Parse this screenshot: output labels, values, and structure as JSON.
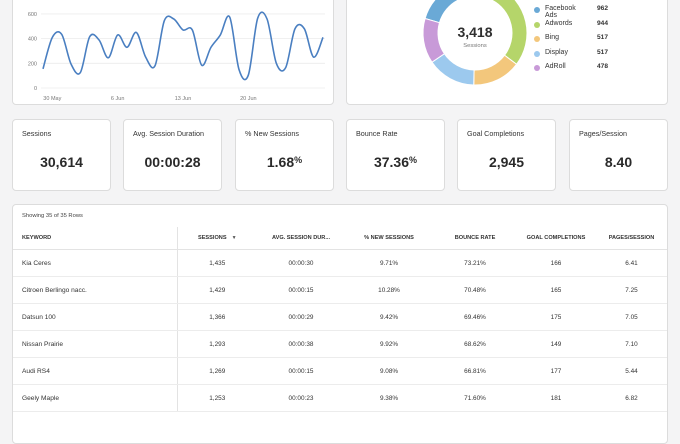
{
  "line_chart": {
    "chart_data": {
      "type": "line",
      "x_labels": [
        "30 May",
        "6 Jun",
        "13 Jun",
        "20 Jun"
      ],
      "y_ticks": [
        0,
        200,
        400,
        600
      ],
      "ylim": [
        0,
        640
      ],
      "grid": true,
      "series": [
        {
          "color": "#4a7fc1",
          "values": [
            155,
            410,
            435,
            195,
            125,
            415,
            390,
            245,
            430,
            330,
            450,
            250,
            180,
            545,
            560,
            470,
            470,
            185,
            330,
            430,
            575,
            150,
            105,
            565,
            560,
            200,
            165,
            480,
            480,
            250,
            410
          ]
        }
      ]
    }
  },
  "donut_chart": {
    "center_value": "3,418",
    "center_label": "Sessions",
    "chart_data": {
      "type": "pie",
      "slices": [
        {
          "name": "Facebook Ads",
          "value": 962,
          "color": "#6aa9d6"
        },
        {
          "name": "Adwords",
          "value": 944,
          "color": "#b5d56a"
        },
        {
          "name": "Bing",
          "value": 517,
          "color": "#f3c77c"
        },
        {
          "name": "Display",
          "value": 517,
          "color": "#9cc9ee"
        },
        {
          "name": "AdRoll",
          "value": 478,
          "color": "#c89ad8"
        }
      ]
    },
    "legend": [
      {
        "name": "Facebook Ads",
        "value": "962",
        "color": "#6aa9d6"
      },
      {
        "name": "Adwords",
        "value": "944",
        "color": "#b5d56a"
      },
      {
        "name": "Bing",
        "value": "517",
        "color": "#f3c77c"
      },
      {
        "name": "Display",
        "value": "517",
        "color": "#9cc9ee"
      },
      {
        "name": "AdRoll",
        "value": "478",
        "color": "#c89ad8"
      }
    ]
  },
  "kpis": [
    {
      "label": "Sessions",
      "value": "30,614",
      "suffix": ""
    },
    {
      "label": "Avg. Session Duration",
      "value": "00:00:28",
      "suffix": ""
    },
    {
      "label": "% New Sessions",
      "value": "1.68",
      "suffix": "%"
    },
    {
      "label": "Bounce Rate",
      "value": "37.36",
      "suffix": "%"
    },
    {
      "label": "Goal Completions",
      "value": "2,945",
      "suffix": ""
    },
    {
      "label": "Pages/Session",
      "value": "8.40",
      "suffix": ""
    }
  ],
  "table": {
    "rows_note": "Showing 35 of 35 Rows",
    "headers": {
      "keyword": "KEYWORD",
      "sessions": "SESSIONS",
      "avg_duration": "AVG. SESSION DUR...",
      "new_sessions": "% NEW SESSIONS",
      "bounce": "BOUNCE RATE",
      "goals": "GOAL COMPLETIONS",
      "pages": "PAGES/SESSION"
    },
    "sort_indicator": "▼",
    "rows": [
      {
        "keyword": "Kia Ceres",
        "sessions": "1,435",
        "avg_duration": "00:00:30",
        "new_sessions": "9.71%",
        "bounce": "73.21%",
        "goals": "166",
        "pages": "6.41"
      },
      {
        "keyword": "Citroen Berlingo nacc.",
        "sessions": "1,429",
        "avg_duration": "00:00:15",
        "new_sessions": "10.28%",
        "bounce": "70.48%",
        "goals": "165",
        "pages": "7.25"
      },
      {
        "keyword": "Datsun 100",
        "sessions": "1,366",
        "avg_duration": "00:00:29",
        "new_sessions": "9.42%",
        "bounce": "69.46%",
        "goals": "175",
        "pages": "7.05"
      },
      {
        "keyword": "Nissan Prairie",
        "sessions": "1,293",
        "avg_duration": "00:00:38",
        "new_sessions": "9.92%",
        "bounce": "68.62%",
        "goals": "149",
        "pages": "7.10"
      },
      {
        "keyword": "Audi RS4",
        "sessions": "1,269",
        "avg_duration": "00:00:15",
        "new_sessions": "9.08%",
        "bounce": "66.81%",
        "goals": "177",
        "pages": "5.44"
      },
      {
        "keyword": "Geely Maple",
        "sessions": "1,253",
        "avg_duration": "00:00:23",
        "new_sessions": "9.38%",
        "bounce": "71.60%",
        "goals": "181",
        "pages": "6.82"
      }
    ]
  }
}
